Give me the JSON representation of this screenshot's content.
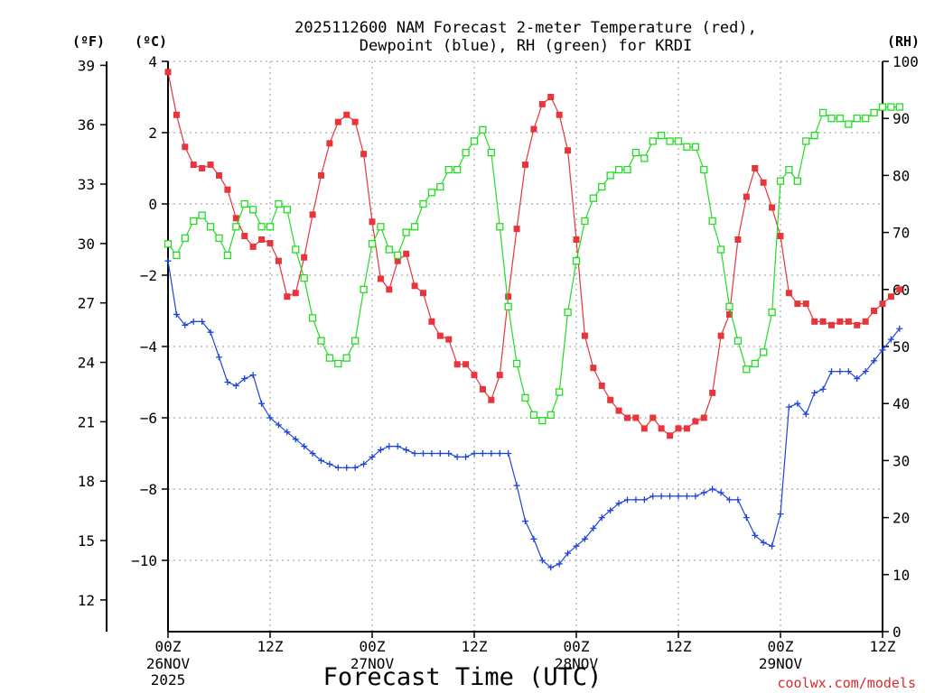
{
  "chart_data": {
    "type": "line",
    "title_line1": "2025112600 NAM Forecast 2-meter Temperature (red),",
    "title_line2": "Dewpoint (blue), RH (green) for KRDI",
    "xlabel": "Forecast Time (UTC)",
    "left_unit_f": "(ºF)",
    "left_unit_c": "(ºC)",
    "right_unit": "(RH)",
    "credit": "coolwx.com/models",
    "x_start_hour": 0,
    "x_end_hour": 84,
    "x_step_hours": 1,
    "x_ticks": [
      {
        "hour": 0,
        "label": "00Z",
        "date": "26NOV",
        "year": "2025"
      },
      {
        "hour": 12,
        "label": "12Z",
        "date": "",
        "year": ""
      },
      {
        "hour": 24,
        "label": "00Z",
        "date": "27NOV",
        "year": ""
      },
      {
        "hour": 36,
        "label": "12Z",
        "date": "",
        "year": ""
      },
      {
        "hour": 48,
        "label": "00Z",
        "date": "28NOV",
        "year": ""
      },
      {
        "hour": 60,
        "label": "12Z",
        "date": "",
        "year": ""
      },
      {
        "hour": 72,
        "label": "00Z",
        "date": "29NOV",
        "year": ""
      },
      {
        "hour": 84,
        "label": "12Z",
        "date": "",
        "year": ""
      }
    ],
    "f_axis": {
      "min": 12,
      "max": 39,
      "ticks": [
        12,
        15,
        18,
        21,
        24,
        27,
        30,
        33,
        36,
        39
      ]
    },
    "c_axis": {
      "min": -12,
      "max": 4,
      "ticks": [
        -10,
        -8,
        -6,
        -4,
        -2,
        0,
        2,
        4
      ]
    },
    "rh_axis": {
      "min": 0,
      "max": 100,
      "ticks": [
        0,
        10,
        20,
        30,
        40,
        50,
        60,
        70,
        80,
        90,
        100
      ]
    },
    "grid": true,
    "series": [
      {
        "name": "2-meter Temperature",
        "unit": "C",
        "color": "#e8343b",
        "marker": "filled-square",
        "values": [
          3.7,
          2.5,
          1.6,
          1.1,
          1.0,
          1.1,
          0.8,
          0.4,
          -0.4,
          -0.9,
          -1.2,
          -1.0,
          -1.1,
          -1.6,
          -2.6,
          -2.5,
          -1.5,
          -0.3,
          0.8,
          1.7,
          2.3,
          2.5,
          2.3,
          1.4,
          -0.5,
          -2.1,
          -2.4,
          -1.6,
          -1.4,
          -2.3,
          -2.5,
          -3.3,
          -3.7,
          -3.8,
          -4.5,
          -4.5,
          -4.8,
          -5.2,
          -5.5,
          -4.8,
          -2.6,
          -0.7,
          1.1,
          2.1,
          2.8,
          3.0,
          2.5,
          1.5,
          -1.0,
          -3.7,
          -4.6,
          -5.1,
          -5.5,
          -5.8,
          -6.0,
          -6.0,
          -6.3,
          -6.0,
          -6.3,
          -6.5,
          -6.3,
          -6.3,
          -6.1,
          -6.0,
          -5.3,
          -3.7,
          -3.1,
          -1.0,
          0.2,
          1.0,
          0.6,
          -0.1,
          -0.9,
          -2.5,
          -2.8,
          -2.8,
          -3.3,
          -3.3,
          -3.4,
          -3.3,
          -3.3,
          -3.4,
          -3.3,
          -3.0,
          -2.8,
          -2.6,
          -2.4
        ]
      },
      {
        "name": "Dewpoint",
        "unit": "C",
        "color": "#1f45d8",
        "marker": "plus",
        "values": [
          -1.6,
          -3.1,
          -3.4,
          -3.3,
          -3.3,
          -3.6,
          -4.3,
          -5.0,
          -5.1,
          -4.9,
          -4.8,
          -5.6,
          -6.0,
          -6.2,
          -6.4,
          -6.6,
          -6.8,
          -7.0,
          -7.2,
          -7.3,
          -7.4,
          -7.4,
          -7.4,
          -7.3,
          -7.1,
          -6.9,
          -6.8,
          -6.8,
          -6.9,
          -7.0,
          -7.0,
          -7.0,
          -7.0,
          -7.0,
          -7.1,
          -7.1,
          -7.0,
          -7.0,
          -7.0,
          -7.0,
          -7.0,
          -7.9,
          -8.9,
          -9.4,
          -10.0,
          -10.2,
          -10.1,
          -9.8,
          -9.6,
          -9.4,
          -9.1,
          -8.8,
          -8.6,
          -8.4,
          -8.3,
          -8.3,
          -8.3,
          -8.2,
          -8.2,
          -8.2,
          -8.2,
          -8.2,
          -8.2,
          -8.1,
          -8.0,
          -8.1,
          -8.3,
          -8.3,
          -8.8,
          -9.3,
          -9.5,
          -9.6,
          -8.7,
          -5.7,
          -5.6,
          -5.9,
          -5.3,
          -5.2,
          -4.7,
          -4.7,
          -4.7,
          -4.9,
          -4.7,
          -4.4,
          -4.1,
          -3.8,
          -3.5
        ]
      },
      {
        "name": "RH",
        "unit": "%",
        "color": "#22dd22",
        "marker": "open-square",
        "values": [
          68,
          66,
          69,
          72,
          73,
          71,
          69,
          66,
          71,
          75,
          74,
          71,
          71,
          75,
          74,
          67,
          62,
          55,
          51,
          48,
          47,
          48,
          51,
          60,
          68,
          71,
          67,
          66,
          70,
          71,
          75,
          77,
          78,
          81,
          81,
          84,
          86,
          88,
          84,
          71,
          57,
          47,
          41,
          38,
          37,
          38,
          42,
          56,
          65,
          72,
          76,
          78,
          80,
          81,
          81,
          84,
          83,
          86,
          87,
          86,
          86,
          85,
          85,
          81,
          72,
          67,
          57,
          51,
          46,
          47,
          49,
          56,
          79,
          81,
          79,
          86,
          87,
          91,
          90,
          90,
          89,
          90,
          90,
          91,
          92,
          92,
          92
        ]
      }
    ]
  }
}
